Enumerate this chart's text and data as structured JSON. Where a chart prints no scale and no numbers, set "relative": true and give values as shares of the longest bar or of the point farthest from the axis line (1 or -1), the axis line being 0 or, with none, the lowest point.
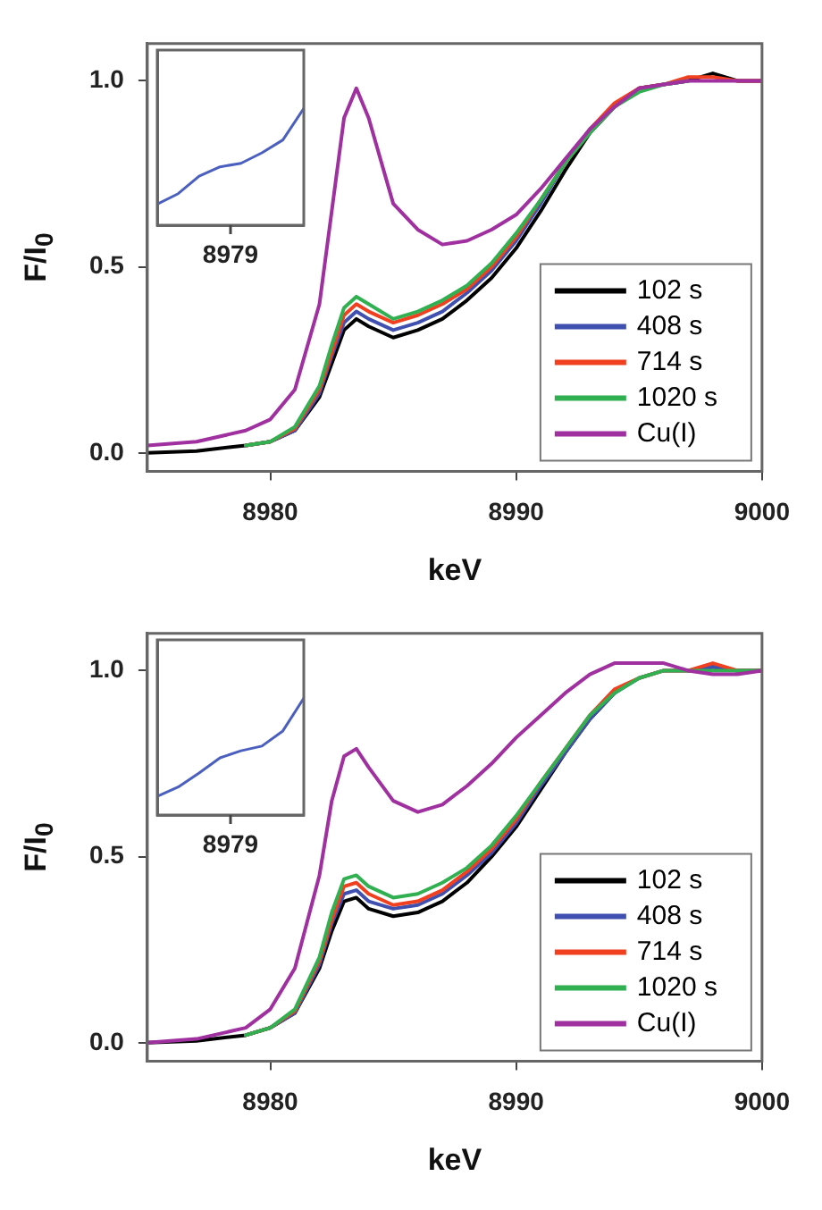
{
  "chart_data": [
    {
      "type": "line",
      "xlabel": "keV",
      "ylabel": "F/I$_{0}$",
      "xlim": [
        8975,
        9000
      ],
      "ylim": [
        -0.05,
        1.1
      ],
      "xticks": [
        8980,
        8990,
        9000
      ],
      "yticks": [
        {
          "value": 0,
          "label": "0.0"
        },
        {
          "value": 0.5,
          "label": "0.5"
        },
        {
          "value": 1,
          "label": "1.0"
        }
      ],
      "grid": false,
      "legend": "bottom right",
      "marker": "none",
      "line_style": "solid",
      "x": [
        8975,
        8977,
        8979,
        8980,
        8981,
        8982,
        8982.5,
        8983,
        8983.5,
        8984,
        8985,
        8986,
        8987,
        8988,
        8989,
        8990,
        8991,
        8992,
        8993,
        8994,
        8995,
        8996,
        8997,
        8998,
        8999,
        9000
      ],
      "series": [
        {
          "name": "102 s",
          "color": "#000000",
          "values": [
            0,
            0.005,
            0.02,
            0.03,
            0.06,
            0.15,
            0.24,
            0.33,
            0.36,
            0.34,
            0.31,
            0.33,
            0.36,
            0.41,
            0.47,
            0.55,
            0.65,
            0.76,
            0.86,
            0.93,
            0.98,
            0.99,
            1,
            1.02,
            1,
            1
          ]
        },
        {
          "name": "408 s",
          "color": "#4050b0",
          "values": [
            null,
            null,
            0.02,
            0.03,
            0.06,
            0.16,
            0.26,
            0.35,
            0.38,
            0.36,
            0.33,
            0.35,
            0.38,
            0.43,
            0.49,
            0.57,
            0.67,
            0.78,
            0.87,
            null,
            null,
            null,
            null,
            null,
            null,
            null
          ]
        },
        {
          "name": "714 s",
          "color": "#f04020",
          "values": [
            null,
            null,
            0.02,
            0.03,
            0.065,
            0.17,
            0.27,
            0.37,
            0.4,
            0.38,
            0.35,
            0.37,
            0.4,
            0.44,
            0.5,
            0.58,
            0.68,
            0.78,
            0.87,
            0.94,
            0.98,
            0.99,
            1.01,
            1.01,
            1,
            1
          ]
        },
        {
          "name": "1020 s",
          "color": "#30b050",
          "values": [
            null,
            null,
            0.02,
            0.03,
            0.07,
            0.18,
            0.29,
            0.39,
            0.42,
            0.4,
            0.36,
            0.38,
            0.41,
            0.45,
            0.51,
            0.59,
            0.68,
            0.78,
            0.86,
            0.93,
            0.97,
            0.99,
            1,
            null,
            null,
            null
          ]
        },
        {
          "name": "Cu(I)",
          "color": "#a030a0",
          "values": [
            0.02,
            0.03,
            0.06,
            0.09,
            0.17,
            0.4,
            0.65,
            0.9,
            0.98,
            0.9,
            0.67,
            0.6,
            0.56,
            0.57,
            0.6,
            0.64,
            0.71,
            0.79,
            0.87,
            0.93,
            0.98,
            0.99,
            1,
            1,
            1,
            1
          ]
        }
      ]
    },
    {
      "type": "line",
      "relative": true,
      "annotations": [
        "8979"
      ],
      "grid": false,
      "marker": "none",
      "categories": [
        null,
        null,
        null,
        null,
        null,
        null,
        null,
        null
      ],
      "series": [
        {
          "color": "#4a5fc0",
          "values": [
            0.18,
            0.27,
            0.42,
            0.5,
            0.53,
            0.62,
            0.73,
            1
          ]
        }
      ]
    },
    {
      "type": "line",
      "xlabel": "keV",
      "ylabel": "F/I$_{0}$",
      "xlim": [
        8975,
        9000
      ],
      "ylim": [
        -0.05,
        1.1
      ],
      "xticks": [
        8980,
        8990,
        9000
      ],
      "yticks": [
        {
          "value": 0,
          "label": "0.0"
        },
        {
          "value": 0.5,
          "label": "0.5"
        },
        {
          "value": 1,
          "label": "1.0"
        }
      ],
      "grid": false,
      "legend": "bottom right",
      "marker": "none",
      "line_style": "solid",
      "x": [
        8975,
        8977,
        8979,
        8980,
        8981,
        8982,
        8982.5,
        8983,
        8983.5,
        8984,
        8985,
        8986,
        8987,
        8988,
        8989,
        8990,
        8991,
        8992,
        8993,
        8994,
        8995,
        8996,
        8997,
        8998,
        8999,
        9000
      ],
      "series": [
        {
          "name": "102 s",
          "color": "#000000",
          "values": [
            0,
            0.005,
            0.02,
            0.04,
            0.08,
            0.2,
            0.3,
            0.38,
            0.39,
            0.36,
            0.34,
            0.35,
            0.38,
            0.43,
            0.5,
            0.58,
            0.68,
            0.78,
            0.87,
            0.94,
            null,
            null,
            1,
            1.01,
            1,
            1
          ]
        },
        {
          "name": "408 s",
          "color": "#4050b0",
          "values": [
            null,
            null,
            0.02,
            0.04,
            0.08,
            0.21,
            0.32,
            0.4,
            0.41,
            0.38,
            0.36,
            0.37,
            0.4,
            0.45,
            0.51,
            0.59,
            0.69,
            0.78,
            0.87,
            0.94,
            0.98,
            1,
            1,
            1.01,
            1,
            1
          ]
        },
        {
          "name": "714 s",
          "color": "#f04020",
          "values": [
            null,
            null,
            0.02,
            0.04,
            0.085,
            0.22,
            0.33,
            0.42,
            0.43,
            0.4,
            0.37,
            0.38,
            0.41,
            0.46,
            0.52,
            0.6,
            0.7,
            0.79,
            0.88,
            0.95,
            0.98,
            1,
            1,
            1.02,
            1,
            1
          ]
        },
        {
          "name": "1020 s",
          "color": "#30b050",
          "values": [
            null,
            null,
            0.02,
            0.04,
            0.09,
            0.23,
            0.35,
            0.44,
            0.45,
            0.42,
            0.39,
            0.4,
            0.43,
            0.47,
            0.53,
            0.61,
            0.7,
            0.79,
            0.88,
            0.94,
            0.98,
            1,
            1,
            1,
            1,
            1
          ]
        },
        {
          "name": "Cu(I)",
          "color": "#a030a0",
          "values": [
            0,
            0.01,
            0.04,
            0.09,
            0.2,
            0.45,
            0.65,
            0.77,
            0.79,
            0.74,
            0.65,
            0.62,
            0.64,
            0.69,
            0.75,
            0.82,
            0.88,
            0.94,
            0.99,
            1.02,
            1.02,
            1.02,
            1,
            0.99,
            0.99,
            1
          ]
        }
      ]
    },
    {
      "type": "line",
      "relative": true,
      "annotations": [
        "8979"
      ],
      "grid": false,
      "marker": "none",
      "categories": [
        null,
        null,
        null,
        null,
        null,
        null,
        null,
        null
      ],
      "series": [
        {
          "color": "#4a5fc0",
          "values": [
            0.16,
            0.24,
            0.36,
            0.49,
            0.55,
            0.59,
            0.72,
            1
          ]
        }
      ]
    }
  ]
}
